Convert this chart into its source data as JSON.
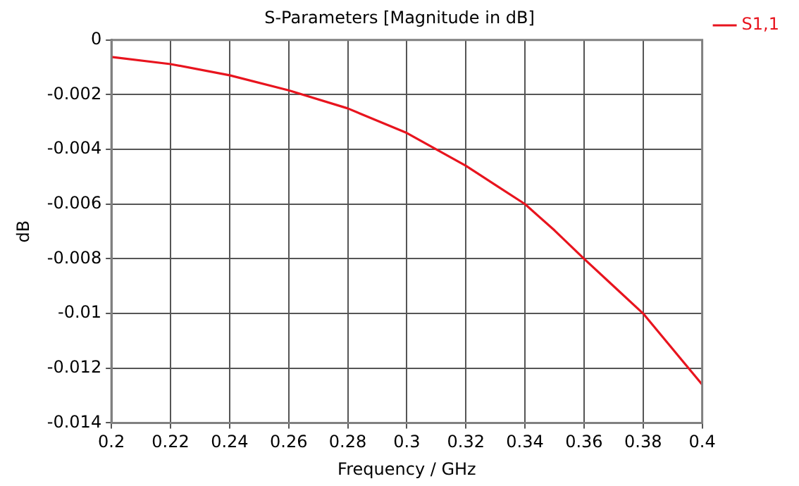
{
  "chart_data": {
    "type": "line",
    "title": "S-Parameters [Magnitude in dB]",
    "xlabel": "Frequency / GHz",
    "ylabel": "dB",
    "x": [
      0.2,
      0.22,
      0.24,
      0.26,
      0.28,
      0.3,
      0.32,
      0.33,
      0.34,
      0.35,
      0.36,
      0.37,
      0.38,
      0.39,
      0.4
    ],
    "series": [
      {
        "name": "S1,1",
        "color": "#e8141e",
        "values": [
          -0.00062,
          -0.00088,
          -0.00129,
          -0.00184,
          -0.0025,
          -0.0034,
          -0.0046,
          -0.0053,
          -0.006,
          -0.00696,
          -0.008,
          -0.009,
          -0.01,
          -0.0113,
          -0.0126
        ]
      }
    ],
    "xlim": [
      0.2,
      0.4
    ],
    "xticks": [
      0.2,
      0.22,
      0.24,
      0.26,
      0.28,
      0.3,
      0.32,
      0.34,
      0.36,
      0.38,
      0.4
    ],
    "ylim": [
      -0.014,
      0
    ],
    "yticks": [
      0,
      -0.002,
      -0.004,
      -0.006,
      -0.008,
      -0.01,
      -0.012,
      -0.014
    ],
    "grid": true,
    "legend": "top right",
    "marker": "none",
    "line_style": "solid"
  }
}
